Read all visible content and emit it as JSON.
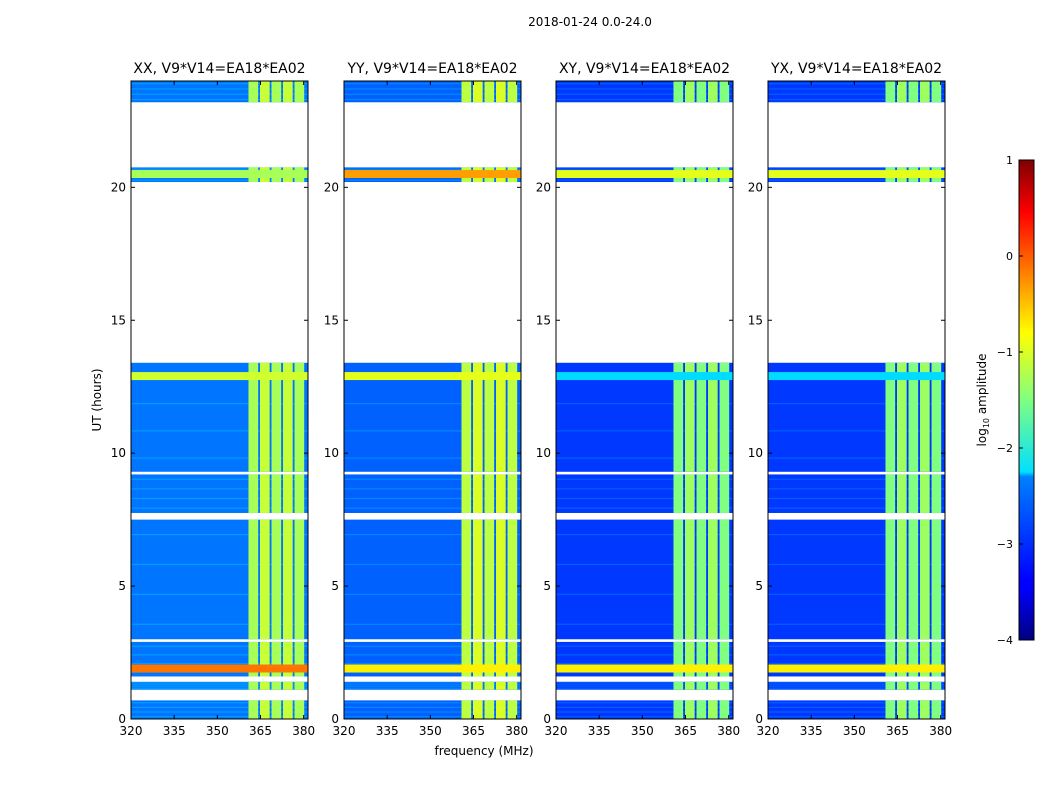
{
  "chart_data": {
    "type": "heatmap",
    "suptitle": "2018-01-24 0.0-24.0",
    "xlabel": "frequency (MHz)",
    "ylabel": "UT (hours)",
    "xlim": [
      320,
      381.5
    ],
    "ylim": [
      0,
      24
    ],
    "xticks": [
      320,
      335,
      350,
      365,
      380
    ],
    "yticks": [
      0,
      5,
      10,
      15,
      20
    ],
    "panels": [
      {
        "title": "XX, V9*V14=EA18*EA02",
        "pol": "XX",
        "band_level": -1.3,
        "bg_level": -2.8,
        "flare_levels": {
          "1.9": -0.2,
          "12.9": -1.1,
          "20.5": -1.3
        }
      },
      {
        "title": "YY, V9*V14=EA18*EA02",
        "pol": "YY",
        "band_level": -1.2,
        "bg_level": -2.9,
        "flare_levels": {
          "1.9": -0.8,
          "12.9": -1.0,
          "20.5": -0.4
        }
      },
      {
        "title": "XY, V9*V14=EA18*EA02",
        "pol": "XY",
        "band_level": -1.5,
        "bg_level": -3.1,
        "flare_levels": {
          "1.9": -0.8,
          "12.9": -2.3,
          "20.5": -1.0
        }
      },
      {
        "title": "YX, V9*V14=EA18*EA02",
        "pol": "YX",
        "band_level": -1.5,
        "bg_level": -3.1,
        "flare_levels": {
          "1.9": -0.8,
          "12.9": -2.3,
          "20.5": -1.0
        }
      }
    ],
    "data_blocks_hours": [
      [
        0.0,
        0.7
      ],
      [
        1.1,
        1.4
      ],
      [
        1.6,
        2.9
      ],
      [
        3.0,
        7.5
      ],
      [
        7.75,
        9.2
      ],
      [
        9.3,
        13.4
      ],
      [
        20.2,
        20.75
      ],
      [
        23.2,
        24.0
      ]
    ],
    "rfi_band_mhz": [
      360.5,
      380.5
    ],
    "colorbar": {
      "label": "log10 amplitude",
      "label_main": "log",
      "label_sub": "10",
      "label_tail": " amplitude",
      "range": [
        -4,
        1
      ],
      "ticks": [
        "1",
        "0",
        "−1",
        "−2",
        "−3",
        "−4"
      ],
      "tick_values": [
        1,
        0,
        -1,
        -2,
        -3,
        -4
      ],
      "colormap": "jet"
    }
  }
}
